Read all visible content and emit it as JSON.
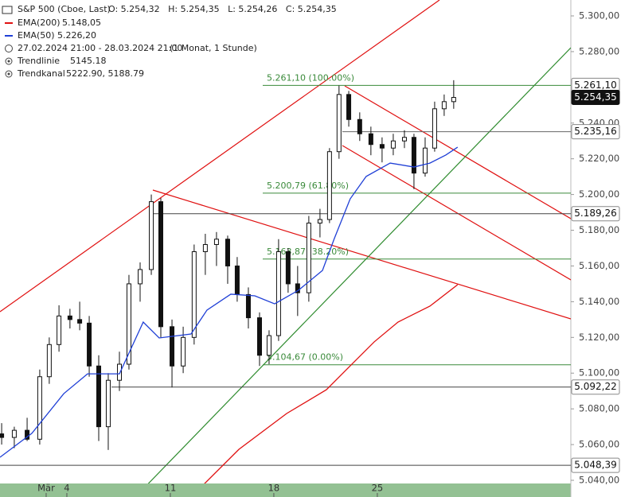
{
  "chart_data": {
    "type": "candlestick",
    "header": {
      "symbol": "S&P 500 (Cboe, Last)",
      "ohlc": "O: 5.254,32   H: 5.254,35   L: 5.254,26   C: 5.254,35",
      "ema200": "EMA(200)",
      "ema200_value": "5.148,05",
      "ema50": "EMA(50)",
      "ema50_value": "5.226,20",
      "range": "27.02.2024 21:00 - 28.03.2024 21:00",
      "period": "(1 Monat, 1 Stunde)",
      "trendline": "Trendlinie",
      "trendline_value": "5145.18",
      "channel": "Trendkanal",
      "channel_value": "5222.90, 5188.79"
    },
    "xlim": [
      -3.23,
      24.35
    ],
    "xticks": [
      {
        "value": -1,
        "label": "Mär"
      },
      {
        "value": 0,
        "label": "4"
      },
      {
        "value": 5,
        "label": "11"
      },
      {
        "value": 10,
        "label": "18"
      },
      {
        "value": 15,
        "label": "25"
      }
    ],
    "ylim": [
      5040,
      5300
    ],
    "yticks": [
      {
        "value": 5300,
        "label": "5.300,00"
      },
      {
        "value": 5280,
        "label": "5.280,00"
      },
      {
        "value": 5240,
        "label": "5.240,00"
      },
      {
        "value": 5220,
        "label": "5.220,00"
      },
      {
        "value": 5200,
        "label": "5.200,00"
      },
      {
        "value": 5180,
        "label": "5.180,00"
      },
      {
        "value": 5160,
        "label": "5.160,00"
      },
      {
        "value": 5140,
        "label": "5.140,00"
      },
      {
        "value": 5120,
        "label": "5.120,00"
      },
      {
        "value": 5100,
        "label": "5.100,00"
      },
      {
        "value": 5080,
        "label": "5.080,00"
      },
      {
        "value": 5060,
        "label": "5.060,00"
      },
      {
        "value": 5040,
        "label": "5.040,00"
      }
    ],
    "x": [
      -3.15,
      -2.54,
      -1.92,
      -1.31,
      -0.85,
      -0.38,
      0.15,
      0.62,
      1.08,
      1.54,
      2.0,
      2.54,
      3.0,
      3.54,
      4.08,
      4.54,
      5.08,
      5.62,
      6.15,
      6.69,
      7.23,
      7.77,
      8.23,
      8.77,
      9.31,
      9.77,
      10.23,
      10.69,
      11.15,
      11.69,
      12.23,
      12.69,
      13.15,
      13.62,
      14.15,
      14.69,
      15.23,
      15.77,
      16.31,
      16.77,
      17.31,
      17.77,
      18.23,
      18.69
    ],
    "open": [
      5066,
      5064,
      5068,
      5063,
      5098,
      5116,
      5132,
      5130,
      5128,
      5104,
      5070,
      5096,
      5105,
      5150,
      5158,
      5196,
      5126,
      5104,
      5120,
      5168,
      5172,
      5175,
      5160,
      5144,
      5131,
      5110,
      5121,
      5168,
      5150,
      5145,
      5184,
      5186,
      5224,
      5256,
      5242,
      5234,
      5228,
      5226,
      5230,
      5232,
      5212,
      5226,
      5248,
      5252
    ],
    "high": [
      5072,
      5070,
      5075,
      5102,
      5120,
      5138,
      5136,
      5140,
      5132,
      5110,
      5100,
      5112,
      5155,
      5162,
      5200,
      5198,
      5130,
      5126,
      5172,
      5178,
      5179,
      5177,
      5165,
      5148,
      5134,
      5124,
      5175,
      5170,
      5160,
      5188,
      5192,
      5226,
      5261,
      5258,
      5246,
      5238,
      5232,
      5234,
      5236,
      5234,
      5232,
      5252,
      5256,
      5264
    ],
    "low": [
      5060,
      5058,
      5062,
      5060,
      5094,
      5112,
      5125,
      5124,
      5098,
      5062,
      5057,
      5090,
      5102,
      5140,
      5155,
      5120,
      5092,
      5100,
      5116,
      5155,
      5160,
      5150,
      5140,
      5125,
      5104,
      5105,
      5118,
      5145,
      5132,
      5140,
      5176,
      5184,
      5220,
      5238,
      5230,
      5222,
      5218,
      5222,
      5226,
      5203,
      5210,
      5224,
      5244,
      5248
    ],
    "close": [
      5064,
      5068,
      5063,
      5098,
      5116,
      5132,
      5130,
      5128,
      5104,
      5070,
      5096,
      5105,
      5150,
      5158,
      5196,
      5126,
      5104,
      5120,
      5168,
      5172,
      5175,
      5160,
      5144,
      5131,
      5110,
      5121,
      5168,
      5150,
      5145,
      5184,
      5186,
      5224,
      5256,
      5242,
      5234,
      5228,
      5226,
      5230,
      5232,
      5212,
      5226,
      5248,
      5252,
      5254.35
    ],
    "candle_color": "#111111",
    "lines": [
      {
        "name": "EMA(50)",
        "color": "#1f3fd6",
        "x": [
          -3.23,
          -1.69,
          -0.15,
          1.0,
          2.54,
          3.69,
          4.46,
          6.0,
          6.77,
          7.92,
          9.08,
          10.04,
          11.19,
          12.35,
          12.92,
          13.69,
          14.46,
          15.62,
          16.77,
          17.54,
          18.31,
          18.88
        ],
        "values": [
          5052.9,
          5066.3,
          5088.5,
          5099.6,
          5099.6,
          5128.6,
          5119.7,
          5121.9,
          5135.3,
          5144.2,
          5143.3,
          5138.8,
          5146.4,
          5157.5,
          5175.3,
          5197.6,
          5210.1,
          5217.6,
          5215.4,
          5217.6,
          5222.1,
          5226.5
        ]
      },
      {
        "name": "EMA(200)",
        "color": "#e01010",
        "x": [
          6.0,
          8.31,
          10.62,
          12.54,
          13.69,
          14.85,
          16.0,
          17.54,
          18.88
        ],
        "values": [
          5030.6,
          5057.3,
          5077.4,
          5090.7,
          5104.1,
          5117.5,
          5128.6,
          5137.5,
          5149.5
        ]
      }
    ],
    "fib_levels": [
      {
        "value": 5261.1,
        "label": "5.261,10 (100.00%)"
      },
      {
        "value": 5200.79,
        "label": "5.200,79 (61.80%)"
      },
      {
        "value": 5163.87,
        "label": "5.163,87 (38.20%)"
      },
      {
        "value": 5104.67,
        "label": "5.104,67 (0.00%)"
      }
    ],
    "fib_color": "#3a8a3a",
    "price_lines": [
      {
        "value": 5261.1,
        "label": "5.261,10"
      },
      {
        "value": 5254.35,
        "label": "5.254,35"
      },
      {
        "value": 5235.16,
        "label": "5.235,16"
      },
      {
        "value": 5189.26,
        "label": "5.189,26"
      },
      {
        "value": 5092.22,
        "label": "5.092,22"
      },
      {
        "value": 5048.39,
        "label": "5.048,39"
      }
    ]
  }
}
